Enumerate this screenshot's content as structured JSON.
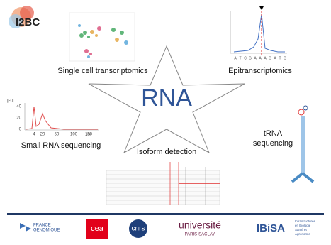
{
  "logo": "I2BC",
  "center": "RNA",
  "topics": {
    "single_cell": "Single cell transcriptomics",
    "epi": "Epitranscriptomics",
    "small_rna": "Small RNA sequencing",
    "isoform": "Isoform detection",
    "trna": [
      "tRNA",
      "sequencing"
    ]
  },
  "small_rna_axis": {
    "y_unit": "[FU]",
    "y_labels": [
      "40",
      "20",
      "0"
    ],
    "x_labels": [
      "4",
      "20",
      "50",
      "100",
      "150"
    ],
    "x_unit": "[nt]"
  },
  "epi_bases": [
    "A",
    "T",
    "C",
    "G",
    "A",
    "A",
    "A",
    "G",
    "A",
    "T",
    "G"
  ],
  "partners": {
    "france_genomique": [
      "FRANCE",
      "GENOMIQUE"
    ],
    "cea": "cea",
    "cnrs": "cnrs",
    "paris_saclay": [
      "université",
      "PARIS-SACLAY"
    ],
    "ibisa": "IBiSA",
    "ibisa_sub": [
      "Infrastructures",
      "en Biologie",
      "Santé et",
      "Agronomie"
    ]
  }
}
